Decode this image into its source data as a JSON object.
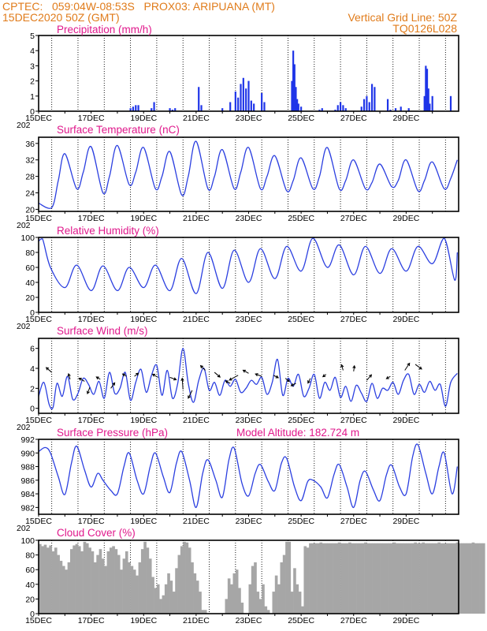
{
  "header": {
    "line1_left": "CPTEC:   059:04W-08:53S   PROX03: ARIPUANA (MT)",
    "line2_left": "15DEC2020 50Z (GMT)",
    "line2_right": "Vertical Grid Line: 50Z",
    "line3_right": "TQ0126L028",
    "model_altitude": "Model Altitude: 182.724  m"
  },
  "colors": {
    "header": "#e07b1a",
    "title": "#e0198c",
    "line": "#2b3fe0",
    "bar": "#1f35e8",
    "cloud": "#a6a6a6"
  },
  "x_axis": {
    "labels": [
      "15DEC",
      "17DEC",
      "19DEC",
      "21DEC",
      "23DEC",
      "25DEC",
      "27DEC",
      "29DEC"
    ],
    "year_fragment": "202"
  },
  "chart_data": [
    {
      "type": "bar",
      "title": "Precipitation (mm/h)",
      "ylim": [
        0,
        5
      ],
      "yticks": [
        0,
        1,
        2,
        3,
        4,
        5
      ],
      "grid": "vertical",
      "x_unit": "days since 15DEC2020",
      "x": [
        3.5,
        3.6,
        3.7,
        3.8,
        4.3,
        4.4,
        5.0,
        5.1,
        5.2,
        6.1,
        6.2,
        7.0,
        7.3,
        7.5,
        7.6,
        7.7,
        7.8,
        7.9,
        8.0,
        8.1,
        8.2,
        8.5,
        8.6,
        9.65,
        9.7,
        9.75,
        9.8,
        9.85,
        9.9,
        10.0,
        10.7,
        10.8,
        11.3,
        11.4,
        11.5,
        11.6,
        11.7,
        12.3,
        12.4,
        12.5,
        12.6,
        12.7,
        12.8,
        13.3,
        13.4,
        13.6,
        13.8,
        14.1,
        14.7,
        14.75,
        14.8,
        14.85,
        14.9,
        15.0,
        15.7
      ],
      "values": [
        0.2,
        0.3,
        0.4,
        0.4,
        0.2,
        0.6,
        0.2,
        0.1,
        0.2,
        1.6,
        0.4,
        0.2,
        0.6,
        1.3,
        0.9,
        1.8,
        2.2,
        1.5,
        2.0,
        0.7,
        0.5,
        1.2,
        0.6,
        2.0,
        4.0,
        3.1,
        1.6,
        0.8,
        0.5,
        0.3,
        0.1,
        0.2,
        0.1,
        0.4,
        0.6,
        0.4,
        0.2,
        0.3,
        0.8,
        1.0,
        0.6,
        1.8,
        1.6,
        0.8,
        0.1,
        0.2,
        0.3,
        0.2,
        1.0,
        3.0,
        2.8,
        1.5,
        0.5,
        1.0,
        1.0
      ]
    },
    {
      "type": "line",
      "title": "Surface Temperature (nC)",
      "ylim": [
        19.5,
        37.5
      ],
      "yticks": [
        20,
        24,
        28,
        32,
        36
      ],
      "grid": "vertical",
      "x": [
        0.0,
        0.5,
        0.75,
        1.0,
        1.45,
        1.7,
        2.0,
        2.45,
        2.7,
        3.0,
        3.45,
        3.7,
        4.0,
        4.45,
        4.7,
        5.0,
        5.45,
        5.7,
        6.0,
        6.45,
        6.7,
        7.0,
        7.45,
        7.7,
        8.0,
        8.45,
        8.7,
        9.0,
        9.45,
        9.7,
        10.0,
        10.45,
        10.7,
        11.0,
        11.45,
        11.7,
        12.0,
        12.45,
        12.7,
        13.0,
        13.45,
        13.7,
        14.0,
        14.45,
        14.7,
        15.0,
        15.45,
        15.7,
        15.95
      ],
      "values": [
        21.5,
        20.4,
        27.0,
        33.5,
        25.0,
        29.0,
        35.2,
        24.0,
        28.0,
        35.5,
        26.0,
        29.0,
        35.0,
        25.0,
        28.0,
        34.0,
        23.5,
        28.0,
        36.5,
        25.0,
        28.0,
        34.5,
        25.0,
        29.0,
        35.0,
        25.0,
        28.0,
        33.0,
        24.5,
        27.0,
        32.5,
        25.0,
        28.0,
        35.0,
        25.0,
        27.0,
        32.0,
        25.0,
        26.5,
        31.0,
        25.5,
        27.0,
        32.0,
        24.5,
        27.0,
        31.5,
        25.0,
        27.5,
        32.0
      ]
    },
    {
      "type": "line",
      "title": "Relative Humidity (%)",
      "ylim": [
        0,
        100
      ],
      "yticks": [
        0,
        20,
        40,
        60,
        80,
        100
      ],
      "grid": "vertical",
      "x": [
        0.0,
        0.15,
        0.45,
        1.0,
        1.45,
        2.0,
        2.45,
        3.0,
        3.45,
        4.0,
        4.45,
        5.0,
        5.45,
        6.0,
        6.45,
        7.0,
        7.45,
        8.0,
        8.45,
        9.0,
        9.45,
        10.0,
        10.45,
        11.0,
        11.45,
        12.0,
        12.45,
        13.0,
        13.45,
        14.0,
        14.45,
        15.0,
        15.45,
        15.85,
        15.95
      ],
      "values": [
        95,
        98,
        60,
        33,
        63,
        29,
        62,
        29,
        60,
        33,
        63,
        29,
        72,
        25,
        80,
        32,
        83,
        40,
        85,
        45,
        88,
        55,
        100,
        60,
        90,
        50,
        88,
        52,
        85,
        55,
        88,
        65,
        100,
        43,
        80
      ]
    },
    {
      "type": "line",
      "title": "Surface Wind (m/s)",
      "ylim": [
        -0.5,
        7
      ],
      "yticks": [
        0,
        2,
        4,
        6
      ],
      "grid": "vertical",
      "x": [
        0.0,
        0.2,
        0.4,
        0.55,
        0.7,
        0.9,
        1.1,
        1.3,
        1.5,
        1.7,
        1.9,
        2.1,
        2.3,
        2.5,
        2.7,
        2.9,
        3.1,
        3.3,
        3.5,
        3.7,
        3.9,
        4.1,
        4.3,
        4.5,
        4.7,
        4.9,
        5.1,
        5.3,
        5.5,
        5.7,
        5.9,
        6.1,
        6.3,
        6.5,
        6.7,
        6.9,
        7.1,
        7.3,
        7.5,
        7.7,
        7.9,
        8.1,
        8.3,
        8.5,
        8.7,
        8.9,
        9.1,
        9.3,
        9.5,
        9.7,
        9.9,
        10.1,
        10.3,
        10.5,
        10.7,
        10.9,
        11.1,
        11.3,
        11.5,
        11.7,
        11.9,
        12.1,
        12.3,
        12.5,
        12.7,
        12.9,
        13.1,
        13.3,
        13.5,
        13.7,
        13.9,
        14.1,
        14.3,
        14.5,
        14.7,
        14.9,
        15.1,
        15.3,
        15.5,
        15.7,
        15.95
      ],
      "values": [
        1.2,
        2.6,
        0.4,
        0.1,
        2.5,
        1.2,
        3.2,
        0.9,
        1.5,
        3.0,
        2.4,
        1.4,
        2.7,
        1.0,
        3.6,
        1.5,
        2.0,
        3.6,
        0.8,
        2.6,
        3.9,
        1.6,
        3.3,
        4.3,
        1.3,
        3.8,
        1.0,
        2.5,
        6.0,
        2.5,
        0.6,
        2.8,
        4.0,
        1.8,
        2.6,
        1.3,
        2.8,
        2.2,
        2.9,
        1.6,
        2.0,
        2.8,
        2.4,
        3.1,
        1.4,
        2.6,
        4.9,
        1.3,
        3.0,
        2.2,
        3.4,
        1.2,
        2.0,
        3.4,
        1.0,
        2.6,
        1.8,
        3.1,
        1.1,
        2.2,
        0.7,
        2.3,
        1.5,
        0.7,
        2.5,
        1.0,
        2.0,
        1.8,
        2.6,
        1.4,
        2.8,
        3.4,
        1.4,
        2.4,
        1.6,
        2.7,
        1.8,
        2.4,
        0.2,
        2.6,
        3.5
      ],
      "vectors": [
        [
          0.5,
          3.6,
          -7,
          -6
        ],
        [
          1.2,
          2.9,
          -2,
          -7
        ],
        [
          1.75,
          2.7,
          -7,
          -4
        ],
        [
          1.95,
          2.1,
          -3,
          8
        ],
        [
          2.35,
          2.9,
          -5,
          -3
        ],
        [
          2.75,
          2.0,
          5,
          -7
        ],
        [
          3.35,
          3.2,
          -5,
          -3
        ],
        [
          3.65,
          3.2,
          5,
          -4
        ],
        [
          4.55,
          3.1,
          -7,
          -4
        ],
        [
          5.0,
          3.1,
          8,
          3
        ],
        [
          5.5,
          1.9,
          -1,
          -14
        ],
        [
          5.85,
          1.8,
          -5,
          10
        ],
        [
          6.35,
          3.8,
          -6,
          -6
        ],
        [
          6.7,
          3.6,
          7,
          6
        ],
        [
          7.3,
          2.5,
          -6,
          -3
        ],
        [
          7.6,
          3.3,
          -11,
          6
        ],
        [
          8.0,
          3.5,
          -7,
          -4
        ],
        [
          8.5,
          3.2,
          -8,
          -3
        ],
        [
          8.95,
          3.3,
          6,
          3
        ],
        [
          9.4,
          3.0,
          5,
          4
        ],
        [
          9.8,
          2.5,
          -6,
          3
        ],
        [
          10.35,
          3.0,
          -3,
          6
        ],
        [
          10.95,
          3.4,
          -4,
          3
        ],
        [
          11.6,
          3.8,
          -2,
          -7
        ],
        [
          12.0,
          3.7,
          1,
          -7
        ],
        [
          12.5,
          2.8,
          6,
          -7
        ],
        [
          13.4,
          3.2,
          -5,
          3
        ],
        [
          13.95,
          3.8,
          6,
          -9
        ],
        [
          14.35,
          4.4,
          8,
          6
        ]
      ]
    },
    {
      "type": "line",
      "title": "Surface Pressure (hPa)",
      "ylim": [
        981,
        992
      ],
      "yticks": [
        982,
        984,
        986,
        988,
        990,
        992
      ],
      "grid": "vertical",
      "x": [
        0.0,
        0.25,
        0.45,
        0.75,
        1.0,
        1.25,
        1.45,
        1.75,
        2.0,
        2.25,
        2.45,
        2.75,
        3.0,
        3.25,
        3.45,
        3.75,
        4.0,
        4.25,
        4.45,
        4.75,
        5.0,
        5.25,
        5.45,
        5.75,
        6.0,
        6.25,
        6.45,
        6.75,
        7.0,
        7.25,
        7.45,
        7.75,
        8.0,
        8.25,
        8.45,
        8.75,
        9.0,
        9.25,
        9.45,
        9.75,
        10.0,
        10.25,
        10.45,
        10.75,
        11.0,
        11.25,
        11.45,
        11.75,
        12.0,
        12.25,
        12.45,
        12.75,
        13.0,
        13.25,
        13.45,
        13.75,
        14.0,
        14.25,
        14.45,
        14.75,
        15.0,
        15.25,
        15.45,
        15.75,
        15.95
      ],
      "values": [
        990.2,
        990.8,
        990.0,
        986.5,
        983.9,
        988.5,
        991.0,
        987.5,
        985.0,
        987.0,
        986.0,
        984.5,
        984.0,
        988.0,
        990.0,
        986.0,
        984.0,
        988.0,
        990.0,
        986.5,
        984.2,
        988.5,
        990.2,
        986.0,
        982.0,
        987.0,
        989.0,
        986.0,
        983.5,
        989.0,
        990.7,
        985.5,
        983.7,
        987.0,
        988.3,
        985.8,
        984.5,
        988.5,
        989.2,
        985.0,
        983.0,
        985.8,
        986.0,
        985.0,
        983.4,
        986.8,
        988.3,
        985.0,
        982.0,
        986.0,
        987.3,
        984.6,
        983.0,
        986.8,
        988.2,
        985.0,
        984.0,
        989.5,
        991.2,
        987.0,
        984.0,
        988.0,
        990.0,
        984.0,
        988.0
      ]
    },
    {
      "type": "bar",
      "title": "Cloud Cover (%)",
      "ylim": [
        0,
        100
      ],
      "yticks": [
        0,
        20,
        40,
        60,
        80,
        100
      ],
      "grid": "vertical",
      "x_step": 0.1,
      "values": [
        95,
        92,
        94,
        90,
        93,
        85,
        90,
        80,
        72,
        65,
        60,
        70,
        88,
        93,
        95,
        92,
        85,
        98,
        96,
        90,
        85,
        70,
        80,
        88,
        75,
        65,
        85,
        90,
        92,
        88,
        80,
        60,
        75,
        85,
        70,
        65,
        60,
        52,
        70,
        88,
        98,
        90,
        75,
        50,
        35,
        40,
        20,
        25,
        40,
        55,
        45,
        30,
        62,
        80,
        92,
        98,
        97,
        90,
        70,
        55,
        45,
        30,
        5,
        5,
        0,
        0,
        0,
        0,
        0,
        0,
        0,
        20,
        48,
        40,
        55,
        60,
        35,
        15,
        0,
        0,
        40,
        65,
        70,
        30,
        20,
        40,
        10,
        5,
        0,
        30,
        52,
        40,
        70,
        80,
        98,
        98,
        30,
        62,
        40,
        30,
        10,
        92,
        90,
        96,
        96,
        96,
        96,
        97,
        96,
        96,
        96,
        96,
        96,
        96,
        97,
        96,
        96,
        96,
        97,
        96,
        96,
        96,
        96,
        96,
        97,
        96,
        96,
        96,
        96,
        96,
        96,
        96,
        96,
        96,
        96,
        97,
        96,
        96,
        96,
        96,
        96,
        96,
        96,
        97,
        96,
        96,
        97,
        96,
        96,
        96,
        96,
        96,
        97,
        96,
        96,
        96,
        96,
        96,
        96,
        97,
        96,
        96,
        96,
        96,
        96,
        97,
        96,
        96,
        96,
        96
      ]
    }
  ]
}
